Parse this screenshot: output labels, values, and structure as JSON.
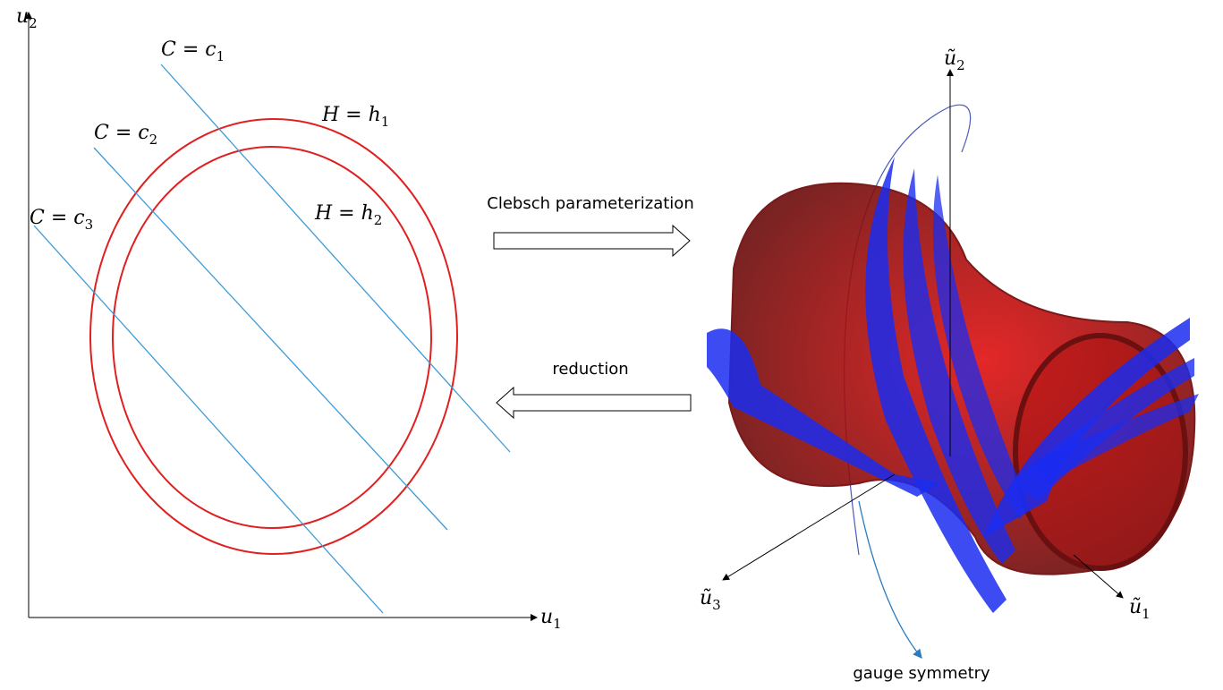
{
  "left_plot": {
    "y_axis": {
      "main": "u",
      "sub": "2"
    },
    "x_axis": {
      "main": "u",
      "sub": "1"
    },
    "casimir_levels": [
      {
        "main": "C = c",
        "sub": "1"
      },
      {
        "main": "C = c",
        "sub": "2"
      },
      {
        "main": "C = c",
        "sub": "3"
      }
    ],
    "energy_levels": [
      {
        "main": "H = h",
        "sub": "1"
      },
      {
        "main": "H = h",
        "sub": "2"
      }
    ]
  },
  "arrows": {
    "forward": "Clebsch parameterization",
    "backward": "reduction"
  },
  "right_plot": {
    "axis_2": {
      "main": "ũ",
      "sub": "2"
    },
    "axis_3": {
      "main": "ũ",
      "sub": "3"
    },
    "axis_1": {
      "main": "ũ",
      "sub": "1"
    },
    "gauge_label": "gauge symmetry"
  }
}
